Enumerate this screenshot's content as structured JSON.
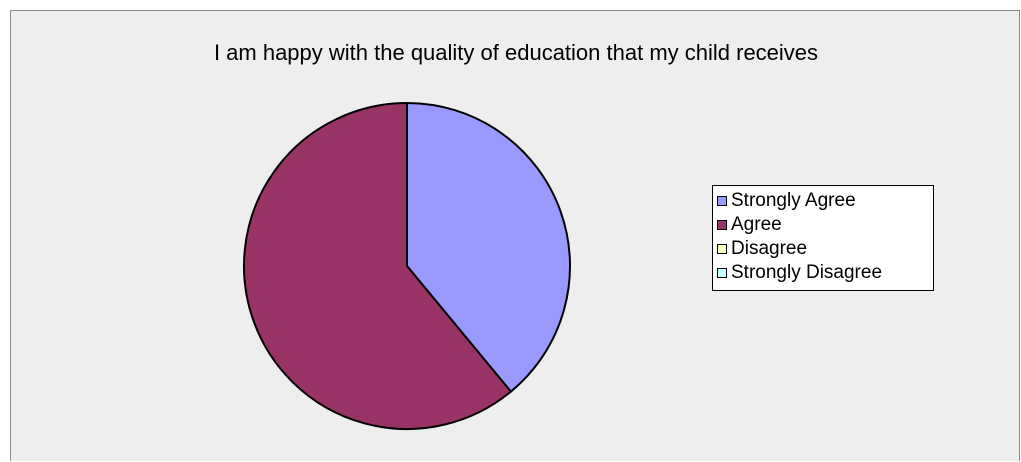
{
  "chart_data": {
    "type": "pie",
    "title": "I am happy with the quality of education that my child receives",
    "legend_position": "right",
    "slices": [
      {
        "label": "Strongly Agree",
        "value": 39,
        "color": "#9999ff"
      },
      {
        "label": "Agree",
        "value": 61,
        "color": "#993366"
      },
      {
        "label": "Disagree",
        "value": 0,
        "color": "#ffffcc"
      },
      {
        "label": "Strongly Disagree",
        "value": 0,
        "color": "#ccffff"
      }
    ]
  }
}
